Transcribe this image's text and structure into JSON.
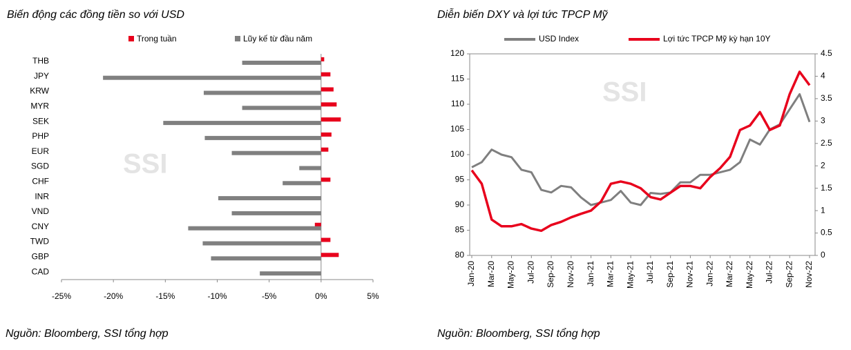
{
  "chart_data": [
    {
      "type": "hbar",
      "title": "Biến động các đồng tiền so với USD",
      "source": "Nguồn: Bloomberg, SSI tổng hợp",
      "watermark": "SSI",
      "categories": [
        "THB",
        "JPY",
        "KRW",
        "MYR",
        "SEK",
        "PHP",
        "EUR",
        "SGD",
        "CHF",
        "INR",
        "VND",
        "CNY",
        "TWD",
        "GBP",
        "CAD"
      ],
      "series": [
        {
          "name": "Trong tuần",
          "color": "#e8001c",
          "values": [
            0.3,
            0.9,
            1.2,
            1.5,
            1.9,
            1.0,
            0.7,
            0,
            0.9,
            0,
            0,
            -0.6,
            0.9,
            1.7,
            0
          ]
        },
        {
          "name": "Lũy kế từ đầu năm",
          "color": "#808080",
          "values": [
            -7.6,
            -21.0,
            -11.3,
            -7.6,
            -15.2,
            -11.2,
            -8.6,
            -2.1,
            -3.7,
            -9.9,
            -8.6,
            -12.8,
            -11.4,
            -10.6,
            -5.9
          ]
        }
      ],
      "xlim": [
        -25,
        5
      ],
      "xticks": [
        {
          "value": -25,
          "label": "-25%"
        },
        {
          "value": -20,
          "label": "-20%"
        },
        {
          "value": -15,
          "label": "-15%"
        },
        {
          "value": -10,
          "label": "-10%"
        },
        {
          "value": -5,
          "label": "-5%"
        },
        {
          "value": 0,
          "label": "0%"
        },
        {
          "value": 5,
          "label": "5%"
        }
      ]
    },
    {
      "type": "line",
      "title": "Diễn biến DXY và lợi tức TPCP Mỹ",
      "source": "Nguồn: Bloomberg, SSI tổng hợp",
      "watermark": "SSI",
      "categories": [
        "Jan-20",
        null,
        "Mar-20",
        null,
        "May-20",
        null,
        "Jul-20",
        null,
        "Sep-20",
        null,
        "Nov-20",
        null,
        "Jan-21",
        null,
        "Mar-21",
        null,
        "May-21",
        null,
        "Jul-21",
        null,
        "Sep-21",
        null,
        "Nov-21",
        null,
        "Jan-22",
        null,
        "Mar-22",
        null,
        "May-22",
        null,
        "Jul-22",
        null,
        "Sep-22",
        null,
        "Nov-22"
      ],
      "series": [
        {
          "name": "USD Index",
          "color": "#7f7f7f",
          "values": [
            97.5,
            98.5,
            101,
            100,
            99.5,
            97,
            96.5,
            93,
            92.5,
            93.8,
            93.5,
            91.5,
            90,
            90.5,
            91,
            92.8,
            90.5,
            90,
            92.4,
            92.2,
            92.5,
            94.5,
            94.5,
            96,
            96,
            96.5,
            97,
            98.5,
            103,
            102,
            105,
            106,
            109,
            112,
            106.5
          ]
        },
        {
          "name": "Lợi tức TPCP Mỹ kỳ hạn 10Y",
          "color": "#e8001c",
          "axis": "y2",
          "values": [
            1.9,
            1.6,
            0.8,
            0.65,
            0.65,
            0.7,
            0.6,
            0.55,
            0.68,
            0.75,
            0.85,
            0.93,
            1.0,
            1.2,
            1.6,
            1.65,
            1.6,
            1.5,
            1.3,
            1.25,
            1.4,
            1.55,
            1.55,
            1.5,
            1.75,
            1.95,
            2.2,
            2.8,
            2.9,
            3.2,
            2.8,
            2.9,
            3.6,
            4.1,
            3.8
          ]
        }
      ],
      "ylim": [
        80,
        120
      ],
      "yticks": [
        80,
        85,
        90,
        95,
        100,
        105,
        110,
        115,
        120
      ],
      "y2lim": [
        0,
        4.5
      ],
      "y2ticks": [
        0,
        0.5,
        1,
        1.5,
        2,
        2.5,
        3,
        3.5,
        4,
        4.5
      ]
    }
  ]
}
